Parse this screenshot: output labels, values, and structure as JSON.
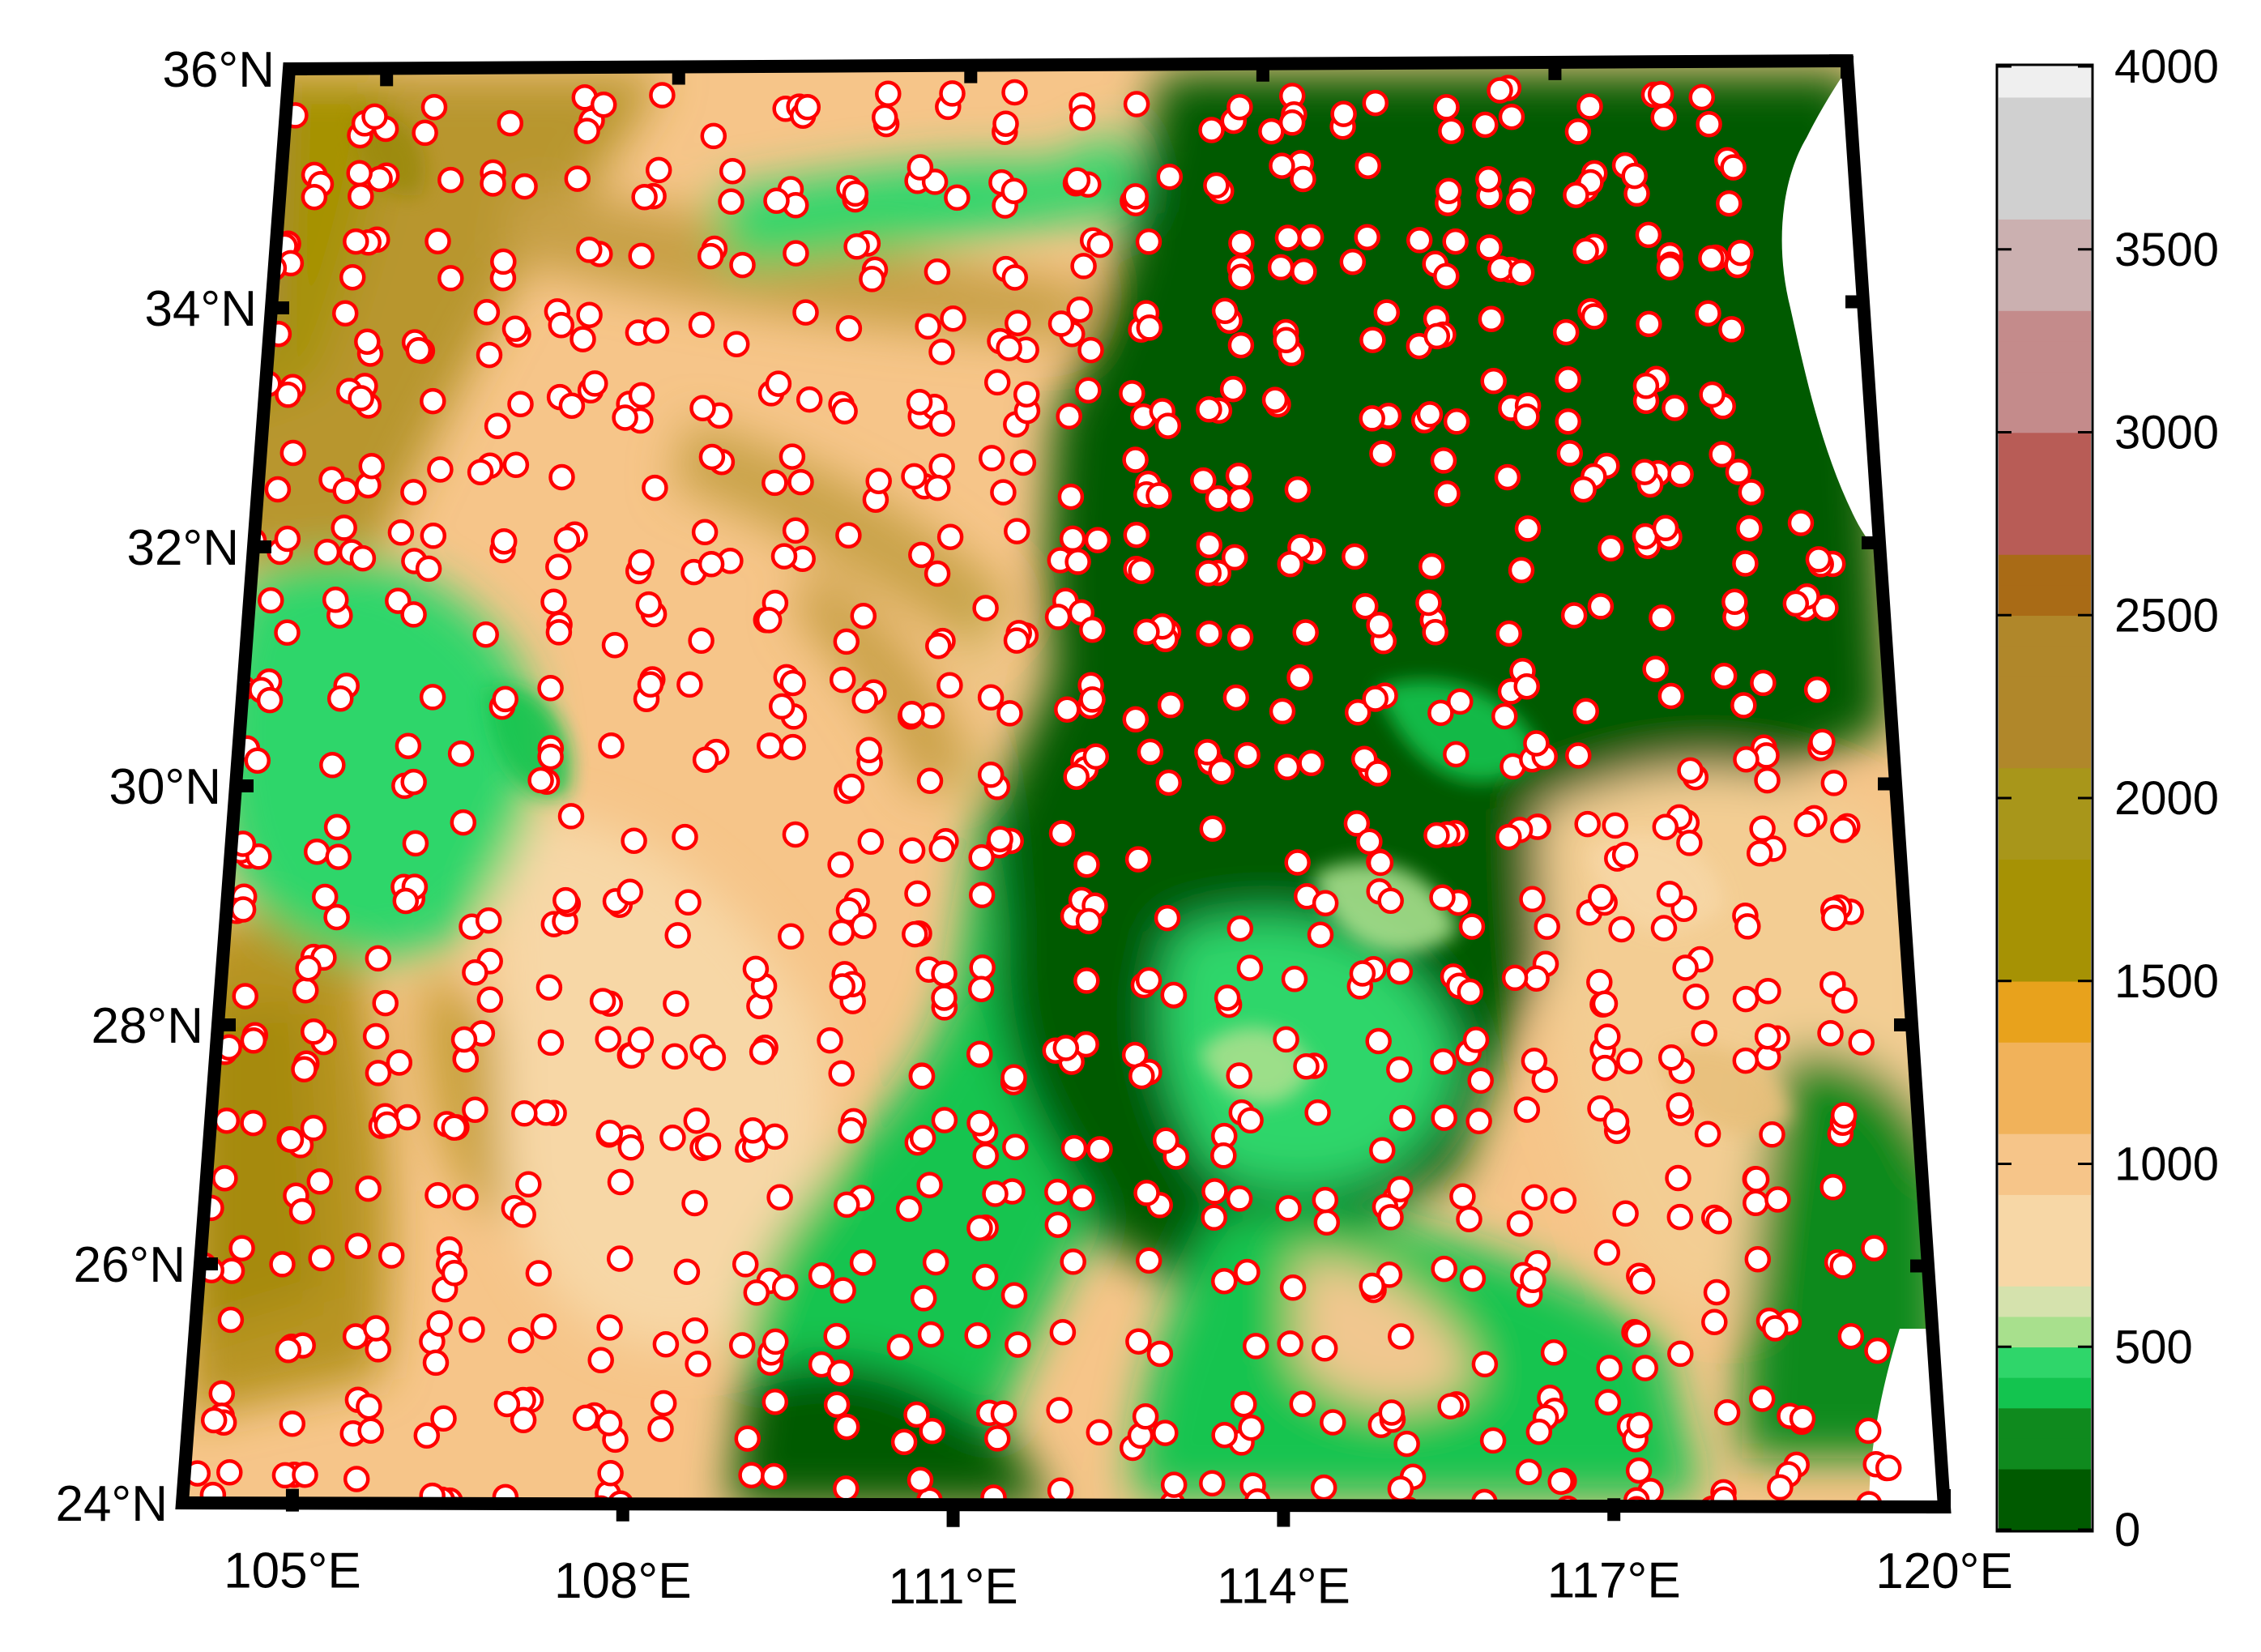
{
  "map": {
    "lon_range": [
      104,
      120
    ],
    "lat_range": [
      24,
      36
    ],
    "lat_labels": [
      "24°N",
      "26°N",
      "28°N",
      "30°N",
      "32°N",
      "34°N",
      "36°N"
    ],
    "lon_labels": [
      "105°E",
      "108°E",
      "111°E",
      "114°E",
      "117°E",
      "120°E"
    ],
    "station_marker": {
      "fill": "#ffffff",
      "stroke": "#ff0000"
    }
  },
  "colorbar": {
    "min": 0,
    "max": 4000,
    "tick_labels": [
      "0",
      "500",
      "1000",
      "1500",
      "2000",
      "2500",
      "3000",
      "3500",
      "4000"
    ],
    "stops": [
      {
        "value": 0,
        "color": "#005a00"
      },
      {
        "value": 150,
        "color": "#0f8a1e"
      },
      {
        "value": 300,
        "color": "#13c44f"
      },
      {
        "value": 400,
        "color": "#2fd66a"
      },
      {
        "value": 500,
        "color": "#a8e08d"
      },
      {
        "value": 600,
        "color": "#d5e2ad"
      },
      {
        "value": 700,
        "color": "#f7d7a6"
      },
      {
        "value": 900,
        "color": "#f6c589"
      },
      {
        "value": 1100,
        "color": "#f1b25a"
      },
      {
        "value": 1300,
        "color": "#e8a21c"
      },
      {
        "value": 1500,
        "color": "#a69204"
      },
      {
        "value": 1800,
        "color": "#a8961a"
      },
      {
        "value": 2100,
        "color": "#b0872a"
      },
      {
        "value": 2500,
        "color": "#a96b16"
      },
      {
        "value": 2700,
        "color": "#b85c56"
      },
      {
        "value": 3000,
        "color": "#c48b8b"
      },
      {
        "value": 3300,
        "color": "#cbb0b0"
      },
      {
        "value": 3600,
        "color": "#d0d0d0"
      },
      {
        "value": 3900,
        "color": "#efefef"
      },
      {
        "value": 4000,
        "color": "#ffffff"
      }
    ]
  }
}
